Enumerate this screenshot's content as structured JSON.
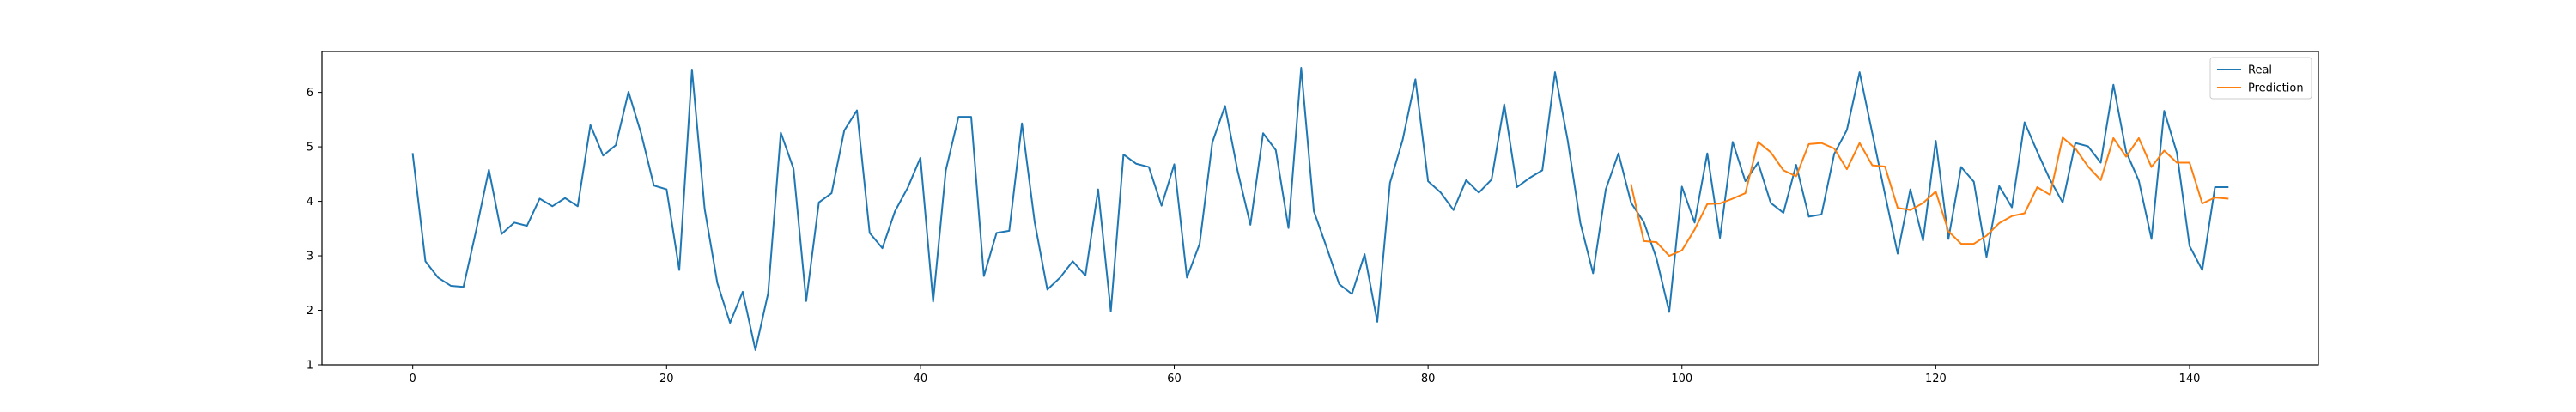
{
  "chart_data": {
    "type": "line",
    "title": "",
    "xlabel": "",
    "ylabel": "",
    "xlim": [
      -7.15,
      150.15
    ],
    "ylim": [
      1.0,
      6.75
    ],
    "xticks": [
      0,
      20,
      40,
      60,
      80,
      100,
      120,
      140
    ],
    "yticks": [
      1,
      2,
      3,
      4,
      5,
      6
    ],
    "grid": false,
    "legend_position": "top-right",
    "series": [
      {
        "name": "Real",
        "color": "#1f77b4",
        "x_start": 0,
        "values": [
          4.87,
          2.9,
          2.6,
          2.45,
          2.43,
          3.47,
          4.58,
          3.4,
          3.61,
          3.55,
          4.05,
          3.91,
          4.06,
          3.91,
          5.4,
          4.84,
          5.03,
          6.01,
          5.24,
          4.29,
          4.22,
          2.74,
          6.42,
          3.86,
          2.5,
          1.77,
          2.34,
          1.27,
          2.31,
          5.26,
          4.6,
          2.17,
          3.98,
          4.15,
          5.3,
          5.67,
          3.42,
          3.14,
          3.82,
          4.25,
          4.8,
          2.16,
          4.57,
          5.55,
          5.55,
          2.63,
          3.42,
          3.46,
          5.43,
          3.62,
          2.38,
          2.6,
          2.9,
          2.64,
          4.22,
          1.98,
          4.86,
          4.69,
          4.63,
          3.92,
          4.68,
          2.6,
          3.22,
          5.08,
          5.75,
          4.55,
          3.57,
          5.25,
          4.94,
          3.51,
          6.45,
          3.82,
          3.16,
          2.48,
          2.3,
          3.03,
          1.79,
          4.34,
          5.13,
          6.24,
          4.37,
          4.16,
          3.84,
          4.39,
          4.16,
          4.4,
          5.78,
          4.26,
          4.43,
          4.57,
          6.37,
          5.12,
          3.6,
          2.68,
          4.22,
          4.88,
          3.97,
          3.62,
          2.95,
          1.97,
          4.27,
          3.61,
          4.88,
          3.33,
          5.09,
          4.37,
          4.71,
          3.97,
          3.79,
          4.67,
          3.72,
          3.76,
          4.87,
          5.31,
          6.37,
          5.25,
          4.13,
          3.04,
          4.22,
          3.28,
          5.11,
          3.31,
          4.63,
          4.36,
          2.98,
          4.28,
          3.89,
          5.45,
          4.91,
          4.4,
          3.98,
          5.07,
          5.01,
          4.71,
          6.14,
          4.91,
          4.38,
          3.31,
          5.66,
          4.89,
          3.18,
          2.74,
          4.26,
          4.26
        ]
      },
      {
        "name": "Prediction",
        "color": "#ff7f0e",
        "x_start": 96,
        "values": [
          4.3,
          3.27,
          3.25,
          3.0,
          3.1,
          3.48,
          3.95,
          3.96,
          4.05,
          4.15,
          5.09,
          4.9,
          4.57,
          4.46,
          5.05,
          5.07,
          4.97,
          4.59,
          5.07,
          4.66,
          4.64,
          3.88,
          3.84,
          3.97,
          4.18,
          3.45,
          3.22,
          3.22,
          3.37,
          3.6,
          3.73,
          3.78,
          4.26,
          4.12,
          5.17,
          4.97,
          4.64,
          4.39,
          5.16,
          4.82,
          5.16,
          4.63,
          4.93,
          4.71,
          4.71,
          3.96,
          4.07,
          4.05
        ]
      }
    ]
  }
}
